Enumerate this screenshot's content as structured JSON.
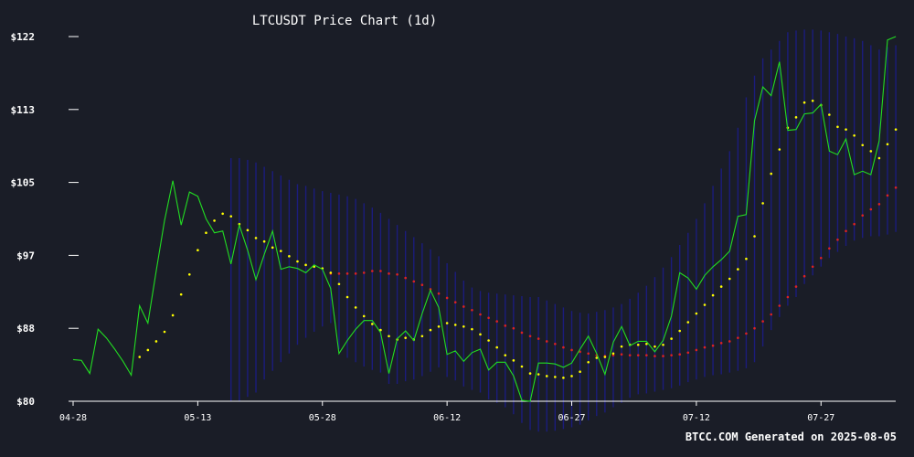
{
  "chart_data": {
    "type": "line",
    "title": "LTCUSDT Price Chart (1d)",
    "xlabel": "",
    "ylabel": "",
    "x_tick_labels": [
      "04-28",
      "05-13",
      "05-28",
      "06-12",
      "06-27",
      "07-12",
      "07-27"
    ],
    "y_tick_labels": [
      "$80",
      "$88",
      "$97",
      "$105",
      "$113",
      "$122"
    ],
    "ylim": [
      80,
      122
    ],
    "grid": false,
    "legend": "none",
    "footer": "BTCC.COM Generated on 2025-08-05",
    "start_date": "2025-04-28",
    "end_date": "2025-08-04",
    "colors": {
      "background": "#1a1d27",
      "price": "#22dd22",
      "ma_short": "#ffff00",
      "ma_long": "#dd2222",
      "bands": "#1c1c8c",
      "axis": "#ffffff"
    },
    "series": [
      {
        "type": "line",
        "color": "#22dd22",
        "values": [
          84.8,
          84.7,
          83.2,
          88.3,
          87.3,
          86.0,
          84.6,
          83.0,
          91.0,
          89.0,
          95.0,
          100.8,
          105.4,
          100.3,
          104.1,
          103.6,
          101.0,
          99.4,
          99.6,
          95.8,
          100.3,
          97.4,
          94.0,
          96.9,
          99.6,
          95.2,
          95.5,
          95.3,
          94.8,
          95.7,
          95.2,
          93.0,
          85.5,
          87.0,
          88.3,
          89.3,
          89.3,
          87.9,
          83.2,
          87.2,
          88.1,
          87.0,
          90.1,
          92.8,
          90.8,
          85.4,
          85.8,
          84.6,
          85.6,
          86.0,
          83.6,
          84.5,
          84.5,
          82.9,
          80.1,
          80.0,
          84.4,
          84.4,
          84.3,
          83.9,
          84.4,
          86.0,
          87.5,
          85.5,
          83.1,
          86.8,
          88.6,
          86.4,
          86.9,
          86.9,
          85.7,
          87.0,
          89.8,
          94.8,
          94.2,
          92.9,
          94.5,
          95.5,
          96.3,
          97.3,
          101.3,
          101.5,
          112.3,
          116.2,
          115.2,
          119.1,
          111.2,
          111.3,
          113.1,
          113.2,
          114.2,
          108.8,
          108.4,
          110.2,
          106.1,
          106.5,
          106.1,
          110.0,
          121.6,
          122.0
        ]
      },
      {
        "type": "scatter",
        "color": "#ffff00",
        "values": [
          null,
          null,
          null,
          null,
          null,
          null,
          null,
          null,
          85.1,
          85.9,
          86.9,
          88.0,
          89.9,
          92.3,
          94.6,
          97.4,
          99.4,
          100.8,
          101.6,
          101.3,
          100.4,
          99.7,
          98.8,
          98.4,
          97.7,
          97.3,
          96.7,
          96.1,
          95.7,
          95.5,
          95.3,
          94.8,
          93.5,
          92.0,
          90.8,
          89.8,
          88.9,
          88.2,
          87.5,
          87.1,
          87.3,
          87.1,
          87.5,
          88.2,
          88.6,
          89.0,
          88.8,
          88.6,
          88.3,
          87.7,
          87.0,
          86.2,
          85.3,
          84.7,
          84.0,
          83.2,
          83.1,
          82.9,
          82.8,
          82.7,
          82.9,
          83.4,
          84.5,
          85.0,
          85.1,
          85.5,
          86.3,
          86.5,
          86.5,
          86.6,
          86.3,
          86.5,
          87.2,
          88.1,
          89.1,
          90.1,
          91.1,
          92.2,
          93.2,
          94.1,
          95.2,
          96.4,
          99.0,
          102.8,
          106.2,
          109.0,
          111.5,
          112.7,
          114.4,
          114.6,
          114.1,
          113.0,
          111.6,
          111.3,
          110.6,
          109.5,
          108.8,
          108.0,
          109.6,
          111.3
        ]
      },
      {
        "type": "scatter",
        "color": "#dd2222",
        "values": [
          null,
          null,
          null,
          null,
          null,
          null,
          null,
          null,
          null,
          null,
          null,
          null,
          null,
          null,
          null,
          null,
          null,
          null,
          null,
          null,
          null,
          null,
          null,
          null,
          null,
          null,
          null,
          null,
          null,
          null,
          null,
          94.7,
          94.7,
          94.7,
          94.7,
          94.8,
          95.0,
          95.0,
          94.7,
          94.6,
          94.2,
          93.8,
          93.4,
          92.9,
          92.4,
          91.9,
          91.4,
          90.9,
          90.5,
          90.0,
          89.6,
          89.2,
          88.7,
          88.4,
          87.9,
          87.5,
          87.2,
          86.9,
          86.6,
          86.2,
          85.9,
          85.7,
          85.5,
          85.3,
          85.2,
          85.3,
          85.4,
          85.3,
          85.3,
          85.3,
          85.2,
          85.2,
          85.3,
          85.4,
          85.6,
          85.9,
          86.2,
          86.4,
          86.7,
          86.9,
          87.3,
          87.8,
          88.4,
          89.2,
          90.0,
          91.0,
          92.0,
          93.2,
          94.4,
          95.5,
          96.5,
          97.6,
          98.6,
          99.6,
          100.4,
          101.4,
          102.1,
          102.7,
          103.7,
          104.6
        ]
      },
      {
        "type": "area",
        "color": "#1c1c8c",
        "upper": [
          null,
          null,
          null,
          null,
          null,
          null,
          null,
          null,
          null,
          null,
          null,
          null,
          null,
          null,
          null,
          null,
          null,
          null,
          null,
          108.0,
          108.0,
          107.8,
          107.5,
          107.0,
          106.5,
          106.0,
          105.5,
          105.0,
          104.8,
          104.5,
          104.2,
          104.0,
          103.8,
          103.6,
          103.3,
          102.8,
          102.3,
          101.7,
          101.0,
          100.3,
          99.6,
          98.9,
          98.2,
          97.5,
          96.7,
          95.9,
          94.9,
          93.9,
          93.1,
          92.7,
          92.5,
          92.4,
          92.3,
          92.2,
          92.1,
          92.0,
          92.0,
          91.6,
          91.2,
          90.8,
          90.4,
          90.2,
          90.1,
          90.3,
          90.5,
          90.8,
          91.2,
          91.8,
          92.5,
          93.3,
          94.3,
          95.4,
          96.6,
          98.0,
          99.4,
          101.0,
          102.8,
          104.8,
          106.8,
          108.8,
          111.5,
          115.0,
          117.5,
          119.5,
          120.5,
          121.5,
          122.5,
          122.7,
          122.8,
          122.8,
          122.7,
          122.5,
          122.3,
          122.0,
          121.8,
          121.5,
          121.0,
          120.5,
          120.8,
          121.0
        ],
        "lower": [
          null,
          null,
          null,
          null,
          null,
          null,
          null,
          null,
          null,
          null,
          null,
          null,
          null,
          null,
          null,
          null,
          null,
          null,
          null,
          80.0,
          80.0,
          80.5,
          81.0,
          82.5,
          83.5,
          84.5,
          85.5,
          86.5,
          87.3,
          88.0,
          88.6,
          89.0,
          86.0,
          85.0,
          84.5,
          84.0,
          83.6,
          83.3,
          82.0,
          82.0,
          82.3,
          82.5,
          82.9,
          83.4,
          83.9,
          82.8,
          82.4,
          81.7,
          81.3,
          81.0,
          80.2,
          79.8,
          79.3,
          78.5,
          77.5,
          76.7,
          76.5,
          76.5,
          76.6,
          76.8,
          77.0,
          77.3,
          77.8,
          78.3,
          78.7,
          79.3,
          79.8,
          80.4,
          80.8,
          80.9,
          81.1,
          81.3,
          81.5,
          81.8,
          82.2,
          82.5,
          82.8,
          83.0,
          83.1,
          83.3,
          83.5,
          83.8,
          84.5,
          86.3,
          88.2,
          89.7,
          91.0,
          92.0,
          93.5,
          94.5,
          95.5,
          96.5,
          97.2,
          97.9,
          98.5,
          98.8,
          99.0,
          99.0,
          99.2,
          99.5
        ]
      }
    ]
  }
}
